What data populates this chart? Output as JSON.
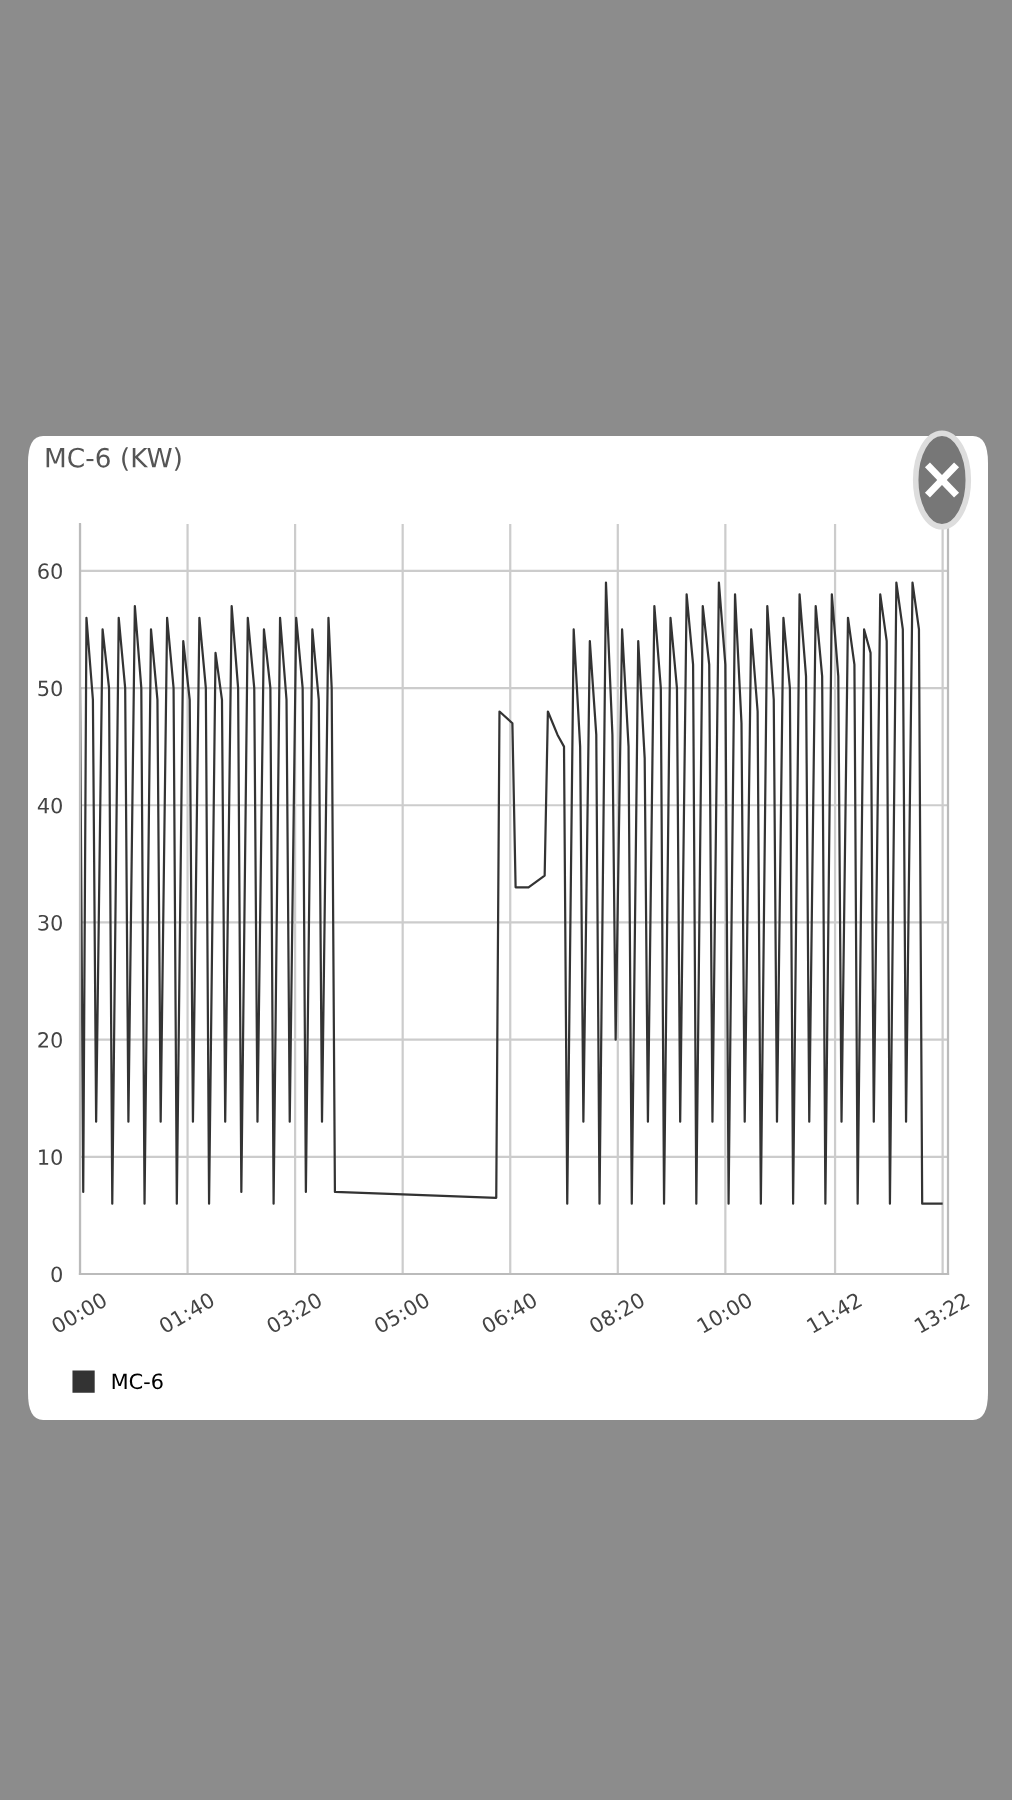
{
  "chart_data": {
    "type": "line",
    "title": "MC-6 (KW)",
    "series": [
      {
        "name": "MC-6",
        "color": "#333333",
        "x": [
          0.0,
          0.05,
          0.1,
          0.2,
          0.25,
          0.35,
          0.45,
          0.5,
          0.6,
          0.7,
          0.75,
          0.85,
          0.95,
          1.0,
          1.1,
          1.2,
          1.25,
          1.35,
          1.45,
          1.5,
          1.6,
          1.7,
          1.75,
          1.85,
          1.95,
          2.0,
          2.1,
          2.2,
          2.25,
          2.35,
          2.45,
          2.5,
          2.6,
          2.7,
          2.75,
          2.85,
          2.95,
          3.0,
          3.1,
          3.2,
          3.25,
          3.35,
          3.45,
          3.5,
          3.6,
          3.7,
          3.75,
          3.85,
          3.9,
          3.95,
          5.0,
          6.45,
          6.5,
          6.7,
          6.75,
          6.95,
          7.2,
          7.25,
          7.4,
          7.5,
          7.55,
          7.65,
          7.75,
          7.8,
          7.9,
          8.0,
          8.05,
          8.15,
          8.25,
          8.3,
          8.4,
          8.5,
          8.55,
          8.65,
          8.75,
          8.8,
          8.9,
          9.0,
          9.05,
          9.15,
          9.25,
          9.3,
          9.4,
          9.5,
          9.55,
          9.65,
          9.75,
          9.8,
          9.9,
          10.0,
          10.05,
          10.15,
          10.25,
          10.3,
          10.4,
          10.5,
          10.55,
          10.65,
          10.75,
          10.8,
          10.9,
          11.0,
          11.05,
          11.15,
          11.25,
          11.3,
          11.4,
          11.5,
          11.55,
          11.65,
          11.75,
          11.8,
          11.9,
          12.0,
          12.05,
          12.15,
          12.25,
          12.3,
          12.4,
          12.5,
          12.55,
          12.65,
          12.75,
          12.8,
          12.9,
          13.0,
          13.05,
          13.1,
          13.35
        ],
        "values": [
          50,
          7,
          56,
          49,
          13,
          55,
          50,
          6,
          56,
          50,
          13,
          57,
          50,
          6,
          55,
          49,
          13,
          56,
          50,
          6,
          54,
          49,
          13,
          56,
          50,
          6,
          53,
          49,
          13,
          57,
          50,
          7,
          56,
          50,
          13,
          55,
          50,
          6,
          56,
          49,
          13,
          56,
          50,
          7,
          55,
          49,
          13,
          56,
          50,
          7,
          6.8,
          6.5,
          48,
          47,
          33,
          33,
          34,
          48,
          46,
          45,
          6,
          55,
          45,
          13,
          54,
          46,
          6,
          59,
          46,
          20,
          55,
          45,
          6,
          54,
          44,
          13,
          57,
          50,
          6,
          56,
          50,
          13,
          58,
          52,
          6,
          57,
          52,
          13,
          59,
          52,
          6,
          58,
          47,
          13,
          55,
          48,
          6,
          57,
          49,
          13,
          56,
          50,
          6,
          58,
          51,
          13,
          57,
          51,
          6,
          58,
          51,
          13,
          56,
          52,
          6,
          55,
          53,
          13,
          58,
          54,
          6,
          59,
          55,
          13,
          59,
          55,
          6,
          6,
          6
        ]
      }
    ],
    "xlim": [
      0,
      13.45
    ],
    "ylim": [
      0,
      64
    ],
    "xticks": [
      {
        "value": 0,
        "label": "00:00"
      },
      {
        "value": 1.6667,
        "label": "01:40"
      },
      {
        "value": 3.3333,
        "label": "03:20"
      },
      {
        "value": 5,
        "label": "05:00"
      },
      {
        "value": 6.6667,
        "label": "06:40"
      },
      {
        "value": 8.3333,
        "label": "08:20"
      },
      {
        "value": 10,
        "label": "10:00"
      },
      {
        "value": 11.7,
        "label": "11:42"
      },
      {
        "value": 13.3667,
        "label": "13:22"
      }
    ],
    "yticks": [
      0,
      10,
      20,
      30,
      40,
      50,
      60
    ],
    "grid": true,
    "legend": "bottom left",
    "marker": "none",
    "line_style": "solid"
  }
}
